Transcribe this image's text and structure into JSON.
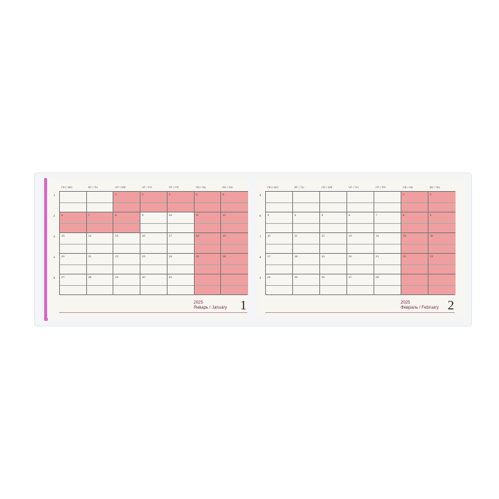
{
  "weekdays": [
    "ПН / MO",
    "ВТ / TU",
    "СР / WE",
    "ЧТ / TH",
    "ПТ / FR",
    "СБ / SA",
    "ВС / SU"
  ],
  "week_label": "неделя / week",
  "colors": {
    "weekend": "#ef9f9f",
    "edge": "#e060c8"
  },
  "months": [
    {
      "year": "2025",
      "name": "Январь / January",
      "page": "1",
      "weeks": [
        "1",
        "2",
        "3",
        "4",
        "5"
      ],
      "days": [
        [
          "",
          "",
          "1",
          "2",
          "3",
          "4",
          "5"
        ],
        [
          "6",
          "7",
          "8",
          "9",
          "10",
          "11",
          "12"
        ],
        [
          "13",
          "14",
          "15",
          "16",
          "17",
          "18",
          "19"
        ],
        [
          "20",
          "21",
          "22",
          "23",
          "24",
          "25",
          "26"
        ],
        [
          "27",
          "28",
          "29",
          "30",
          "31",
          "",
          ""
        ]
      ],
      "highlight": [
        [
          0,
          0,
          1,
          1,
          1,
          1,
          1
        ],
        [
          1,
          1,
          1,
          0,
          0,
          1,
          1
        ],
        [
          0,
          0,
          0,
          0,
          0,
          1,
          1
        ],
        [
          0,
          0,
          0,
          0,
          0,
          1,
          1
        ],
        [
          0,
          0,
          0,
          0,
          0,
          1,
          1
        ]
      ]
    },
    {
      "year": "2025",
      "name": "Февраль / February",
      "page": "2",
      "weeks": [
        "5",
        "6",
        "7",
        "8",
        "9"
      ],
      "days": [
        [
          "",
          "",
          "",
          "",
          "",
          "1",
          "2"
        ],
        [
          "3",
          "4",
          "5",
          "6",
          "7",
          "8",
          "9"
        ],
        [
          "10",
          "11",
          "12",
          "13",
          "14",
          "15",
          "16"
        ],
        [
          "17",
          "18",
          "19",
          "20",
          "21",
          "22",
          "23"
        ],
        [
          "24",
          "25",
          "26",
          "27",
          "28",
          "",
          ""
        ]
      ],
      "highlight": [
        [
          0,
          0,
          0,
          0,
          0,
          1,
          1
        ],
        [
          0,
          0,
          0,
          0,
          0,
          1,
          1
        ],
        [
          0,
          0,
          0,
          0,
          0,
          1,
          1
        ],
        [
          0,
          0,
          0,
          0,
          0,
          1,
          1
        ],
        [
          0,
          0,
          0,
          0,
          0,
          1,
          1
        ]
      ]
    }
  ]
}
